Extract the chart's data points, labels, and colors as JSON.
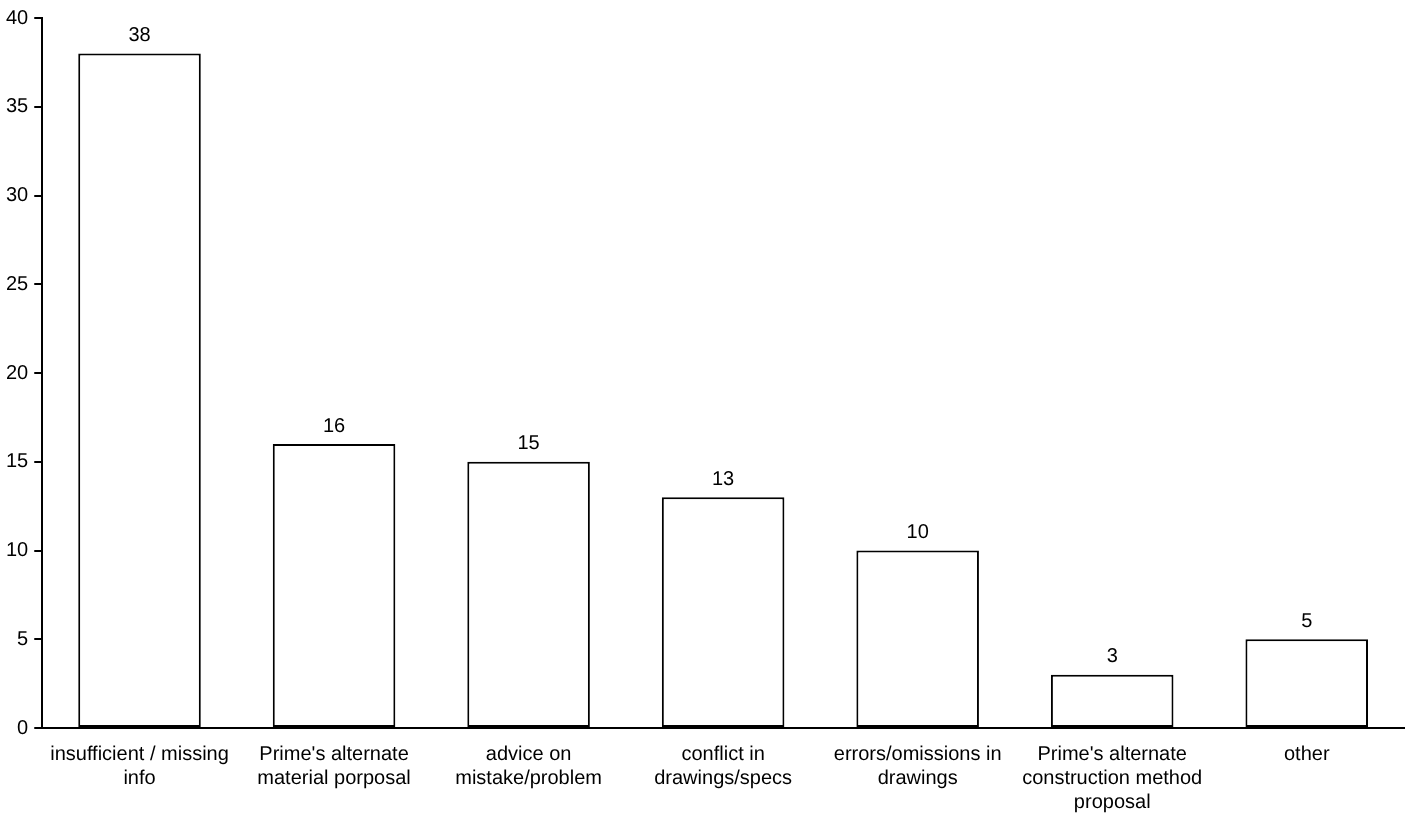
{
  "chart_data": {
    "type": "bar",
    "categories": [
      "insufficient / missing info",
      "Prime's alternate material porposal",
      "advice on mistake/problem",
      "conflict in drawings/specs",
      "errors/omissions in drawings",
      "Prime's alternate construction method proposal",
      "other"
    ],
    "values": [
      38,
      16,
      15,
      13,
      10,
      3,
      5
    ],
    "color": "#ffffff",
    "ylim": [
      0,
      40
    ],
    "yticks": [
      0,
      5,
      10,
      15,
      20,
      25,
      30,
      35,
      40
    ],
    "grid": false,
    "legend": false,
    "data_labels": true
  }
}
